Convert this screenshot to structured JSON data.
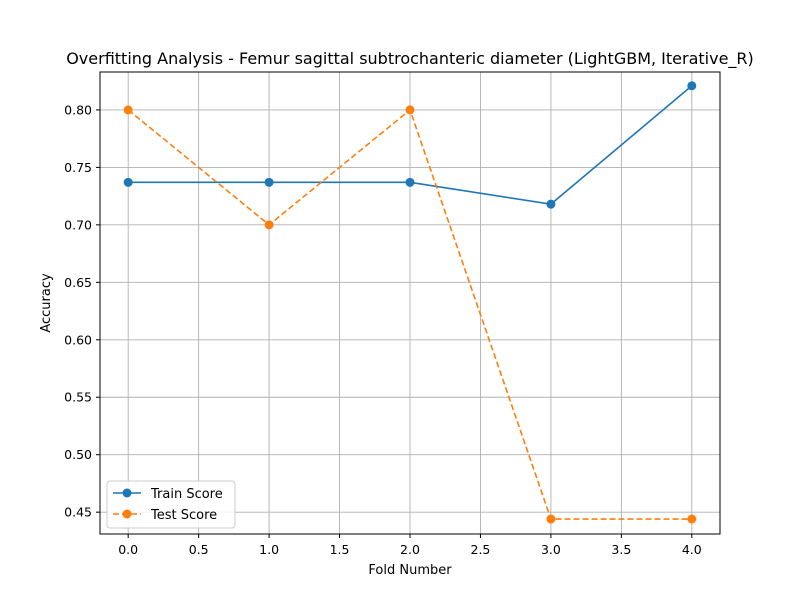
{
  "chart_data": {
    "type": "line",
    "title": "Overfitting Analysis - Femur sagittal subtrochanteric diameter (LightGBM, Iterative_R)",
    "xlabel": "Fold Number",
    "ylabel": "Accuracy",
    "xlim": [
      -0.2,
      4.2
    ],
    "ylim": [
      0.431,
      0.833
    ],
    "xticks": [
      "0.0",
      "0.5",
      "1.0",
      "1.5",
      "2.0",
      "2.5",
      "3.0",
      "3.5",
      "4.0"
    ],
    "yticks": [
      "0.45",
      "0.50",
      "0.55",
      "0.60",
      "0.65",
      "0.70",
      "0.75",
      "0.80"
    ],
    "grid": true,
    "legend_position": "lower-left",
    "x": [
      0,
      1,
      2,
      3,
      4
    ],
    "series": [
      {
        "name": "Train Score",
        "values": [
          0.737,
          0.737,
          0.737,
          0.718,
          0.821
        ],
        "color": "#1f77b4",
        "linestyle": "solid",
        "marker": "circle"
      },
      {
        "name": "Test Score",
        "values": [
          0.8,
          0.7,
          0.8,
          0.444,
          0.444
        ],
        "color": "#ff7f0e",
        "linestyle": "dashed",
        "marker": "circle"
      }
    ]
  }
}
